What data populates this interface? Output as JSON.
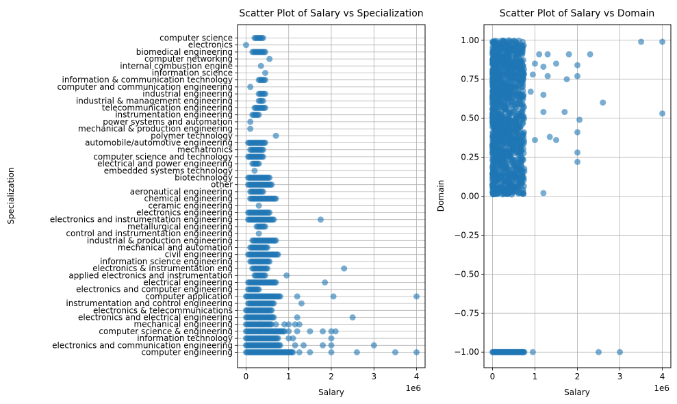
{
  "chart_data": [
    {
      "type": "scatter",
      "title": "Scatter Plot of Salary vs Specialization",
      "xlabel": "Salary",
      "ylabel": "Specialization",
      "x_offset_label": "1e6",
      "xlim": [
        -200000,
        4200000
      ],
      "x_ticks": [
        0,
        1000000,
        2000000,
        3000000,
        4000000
      ],
      "x_tick_labels": [
        "0",
        "1",
        "2",
        "3",
        "4"
      ],
      "grid": true,
      "color": "#1f77b4",
      "categories": [
        "computer engineering",
        "electronics and communication engineering",
        "information technology",
        "computer science & engineering",
        "mechanical engineering",
        "electronics and electrical engineering",
        "electronics & telecommunications",
        "instrumentation and control engineering",
        "computer application",
        "electronics and computer engineering",
        "electrical engineering",
        "applied electronics and instrumentation",
        "electronics & instrumentation eng",
        "information science engineering",
        "civil engineering",
        "mechanical and automation",
        "industrial & production engineering",
        "control and instrumentation engineering",
        "metallurgical engineering",
        "electronics and instrumentation engineering",
        "electronics engineering",
        "ceramic engineering",
        "chemical engineering",
        "aeronautical engineering",
        "other",
        "biotechnology",
        "embedded systems technology",
        "electrical and power engineering",
        "computer science and technology",
        "mechatronics",
        "automobile/automotive engineering",
        "polymer technology",
        "mechanical & production engineering",
        "power systems and automation",
        "instrumentation engineering",
        "telecommunication engineering",
        "industrial & management engineering",
        "industrial engineering",
        "computer and communication engineering",
        "information & communication technology",
        "information science",
        "internal combustion engine",
        "computer networking",
        "biomedical engineering",
        "electronics",
        "computer science"
      ],
      "ranges": [
        [
          0,
          1100000
        ],
        [
          0,
          800000
        ],
        [
          0,
          750000
        ],
        [
          0,
          900000
        ],
        [
          0,
          600000
        ],
        [
          0,
          650000
        ],
        [
          0,
          600000
        ],
        [
          50000,
          650000
        ],
        [
          0,
          800000
        ],
        [
          50000,
          300000
        ],
        [
          50000,
          700000
        ],
        [
          200000,
          450000
        ],
        [
          150000,
          500000
        ],
        [
          100000,
          550000
        ],
        [
          50000,
          750000
        ],
        [
          100000,
          500000
        ],
        [
          150000,
          700000
        ],
        [
          300000,
          300000
        ],
        [
          250000,
          450000
        ],
        [
          50000,
          650000
        ],
        [
          50000,
          550000
        ],
        [
          300000,
          300000
        ],
        [
          100000,
          700000
        ],
        [
          100000,
          400000
        ],
        [
          50000,
          600000
        ],
        [
          50000,
          550000
        ],
        [
          200000,
          200000
        ],
        [
          150000,
          300000
        ],
        [
          50000,
          400000
        ],
        [
          100000,
          400000
        ],
        [
          50000,
          450000
        ],
        [
          700000,
          700000
        ],
        [
          100000,
          100000
        ],
        [
          100000,
          100000
        ],
        [
          150000,
          300000
        ],
        [
          200000,
          450000
        ],
        [
          300000,
          400000
        ],
        [
          300000,
          450000
        ],
        [
          100000,
          100000
        ],
        [
          300000,
          450000
        ],
        [
          450000,
          450000
        ],
        [
          350000,
          350000
        ],
        [
          550000,
          550000
        ],
        [
          150000,
          450000
        ],
        [
          0,
          0
        ],
        [
          200000,
          400000
        ]
      ],
      "extra_points": [
        [
          1250000,
          0
        ],
        [
          1500000,
          0
        ],
        [
          2000000,
          0
        ],
        [
          2600000,
          0
        ],
        [
          3500000,
          0
        ],
        [
          4000000,
          0
        ],
        [
          1150000,
          1
        ],
        [
          1350000,
          1
        ],
        [
          1800000,
          1
        ],
        [
          2000000,
          1
        ],
        [
          3000000,
          1
        ],
        [
          1000000,
          2
        ],
        [
          1100000,
          2
        ],
        [
          2000000,
          2
        ],
        [
          1000000,
          3
        ],
        [
          1200000,
          3
        ],
        [
          1500000,
          3
        ],
        [
          1800000,
          3
        ],
        [
          2000000,
          3
        ],
        [
          2100000,
          3
        ],
        [
          700000,
          4
        ],
        [
          900000,
          4
        ],
        [
          1000000,
          4
        ],
        [
          1150000,
          4
        ],
        [
          1250000,
          4
        ],
        [
          1200000,
          5
        ],
        [
          2500000,
          5
        ],
        [
          1300000,
          7
        ],
        [
          1200000,
          8
        ],
        [
          2050000,
          8
        ],
        [
          4000000,
          8
        ],
        [
          1850000,
          10
        ],
        [
          950000,
          11
        ],
        [
          2300000,
          12
        ],
        [
          1750000,
          19
        ]
      ]
    },
    {
      "type": "scatter",
      "title": "Scatter Plot of Salary vs Domain",
      "xlabel": "Salary",
      "ylabel": "Domain",
      "x_offset_label": "1e6",
      "xlim": [
        -200000,
        4200000
      ],
      "ylim": [
        -1.1,
        1.1
      ],
      "x_ticks": [
        0,
        1000000,
        2000000,
        3000000,
        4000000
      ],
      "x_tick_labels": [
        "0",
        "1",
        "2",
        "3",
        "4"
      ],
      "y_ticks": [
        -1.0,
        -0.75,
        -0.5,
        -0.25,
        0.0,
        0.25,
        0.5,
        0.75,
        1.0
      ],
      "y_tick_labels": [
        "−1.00",
        "−0.75",
        "−0.50",
        "−0.25",
        "0.00",
        "0.25",
        "0.50",
        "0.75",
        "1.00"
      ],
      "grid": true,
      "color": "#1f77b4",
      "points": [
        [
          3500000,
          0.99
        ],
        [
          4000000,
          0.99
        ],
        [
          4000000,
          0.53
        ],
        [
          2600000,
          0.6
        ],
        [
          2300000,
          0.91
        ],
        [
          2050000,
          0.49
        ],
        [
          2000000,
          0.84
        ],
        [
          2000000,
          0.77
        ],
        [
          2000000,
          0.41
        ],
        [
          2000000,
          0.28
        ],
        [
          2000000,
          0.22
        ],
        [
          1800000,
          0.91
        ],
        [
          1750000,
          0.75
        ],
        [
          1700000,
          0.54
        ],
        [
          1500000,
          0.85
        ],
        [
          1500000,
          0.36
        ],
        [
          1350000,
          0.38
        ],
        [
          1300000,
          0.91
        ],
        [
          1300000,
          0.77
        ],
        [
          1200000,
          0.83
        ],
        [
          1200000,
          0.65
        ],
        [
          1200000,
          0.54
        ],
        [
          1200000,
          0.02
        ],
        [
          1100000,
          0.91
        ],
        [
          1000000,
          0.36
        ],
        [
          1000000,
          0.85
        ],
        [
          950000,
          0.78
        ],
        [
          900000,
          0.67
        ],
        [
          2500000,
          -1.0
        ],
        [
          3000000,
          -1.0
        ],
        [
          950000,
          -1.0
        ]
      ],
      "bands": [
        [
          0,
          750000,
          0.01,
          1.0
        ],
        [
          0,
          750000,
          -1.0,
          -1.0
        ]
      ]
    }
  ]
}
